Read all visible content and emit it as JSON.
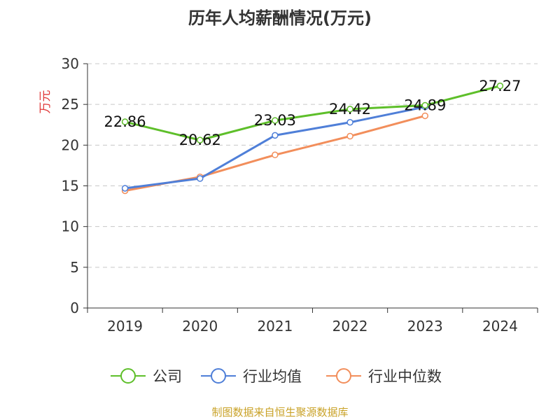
{
  "chart_data": {
    "type": "line",
    "title": "历年人均薪酬情况(万元)",
    "ylabel": "万元",
    "xlabel": "",
    "categories": [
      "2019",
      "2020",
      "2021",
      "2022",
      "2023",
      "2024"
    ],
    "ylim": [
      0,
      30
    ],
    "yticks": [
      0,
      5,
      10,
      15,
      20,
      25,
      30
    ],
    "grid": true,
    "legend_position": "bottom",
    "series": [
      {
        "name": "公司",
        "color": "#5ebf2a",
        "values": [
          22.86,
          20.62,
          23.03,
          24.42,
          24.89,
          27.27
        ],
        "labels": [
          "22.86",
          "20.62",
          "23.03",
          "24.42",
          "24.89",
          "27.27"
        ]
      },
      {
        "name": "行业均值",
        "color": "#4f7fd8",
        "values": [
          14.7,
          15.9,
          21.2,
          22.8,
          24.7,
          null
        ]
      },
      {
        "name": "行业中位数",
        "color": "#f28e5b",
        "values": [
          14.4,
          16.1,
          18.8,
          21.1,
          23.6,
          null
        ]
      }
    ]
  },
  "footer": {
    "source": "制图数据来自恒生聚源数据库"
  }
}
